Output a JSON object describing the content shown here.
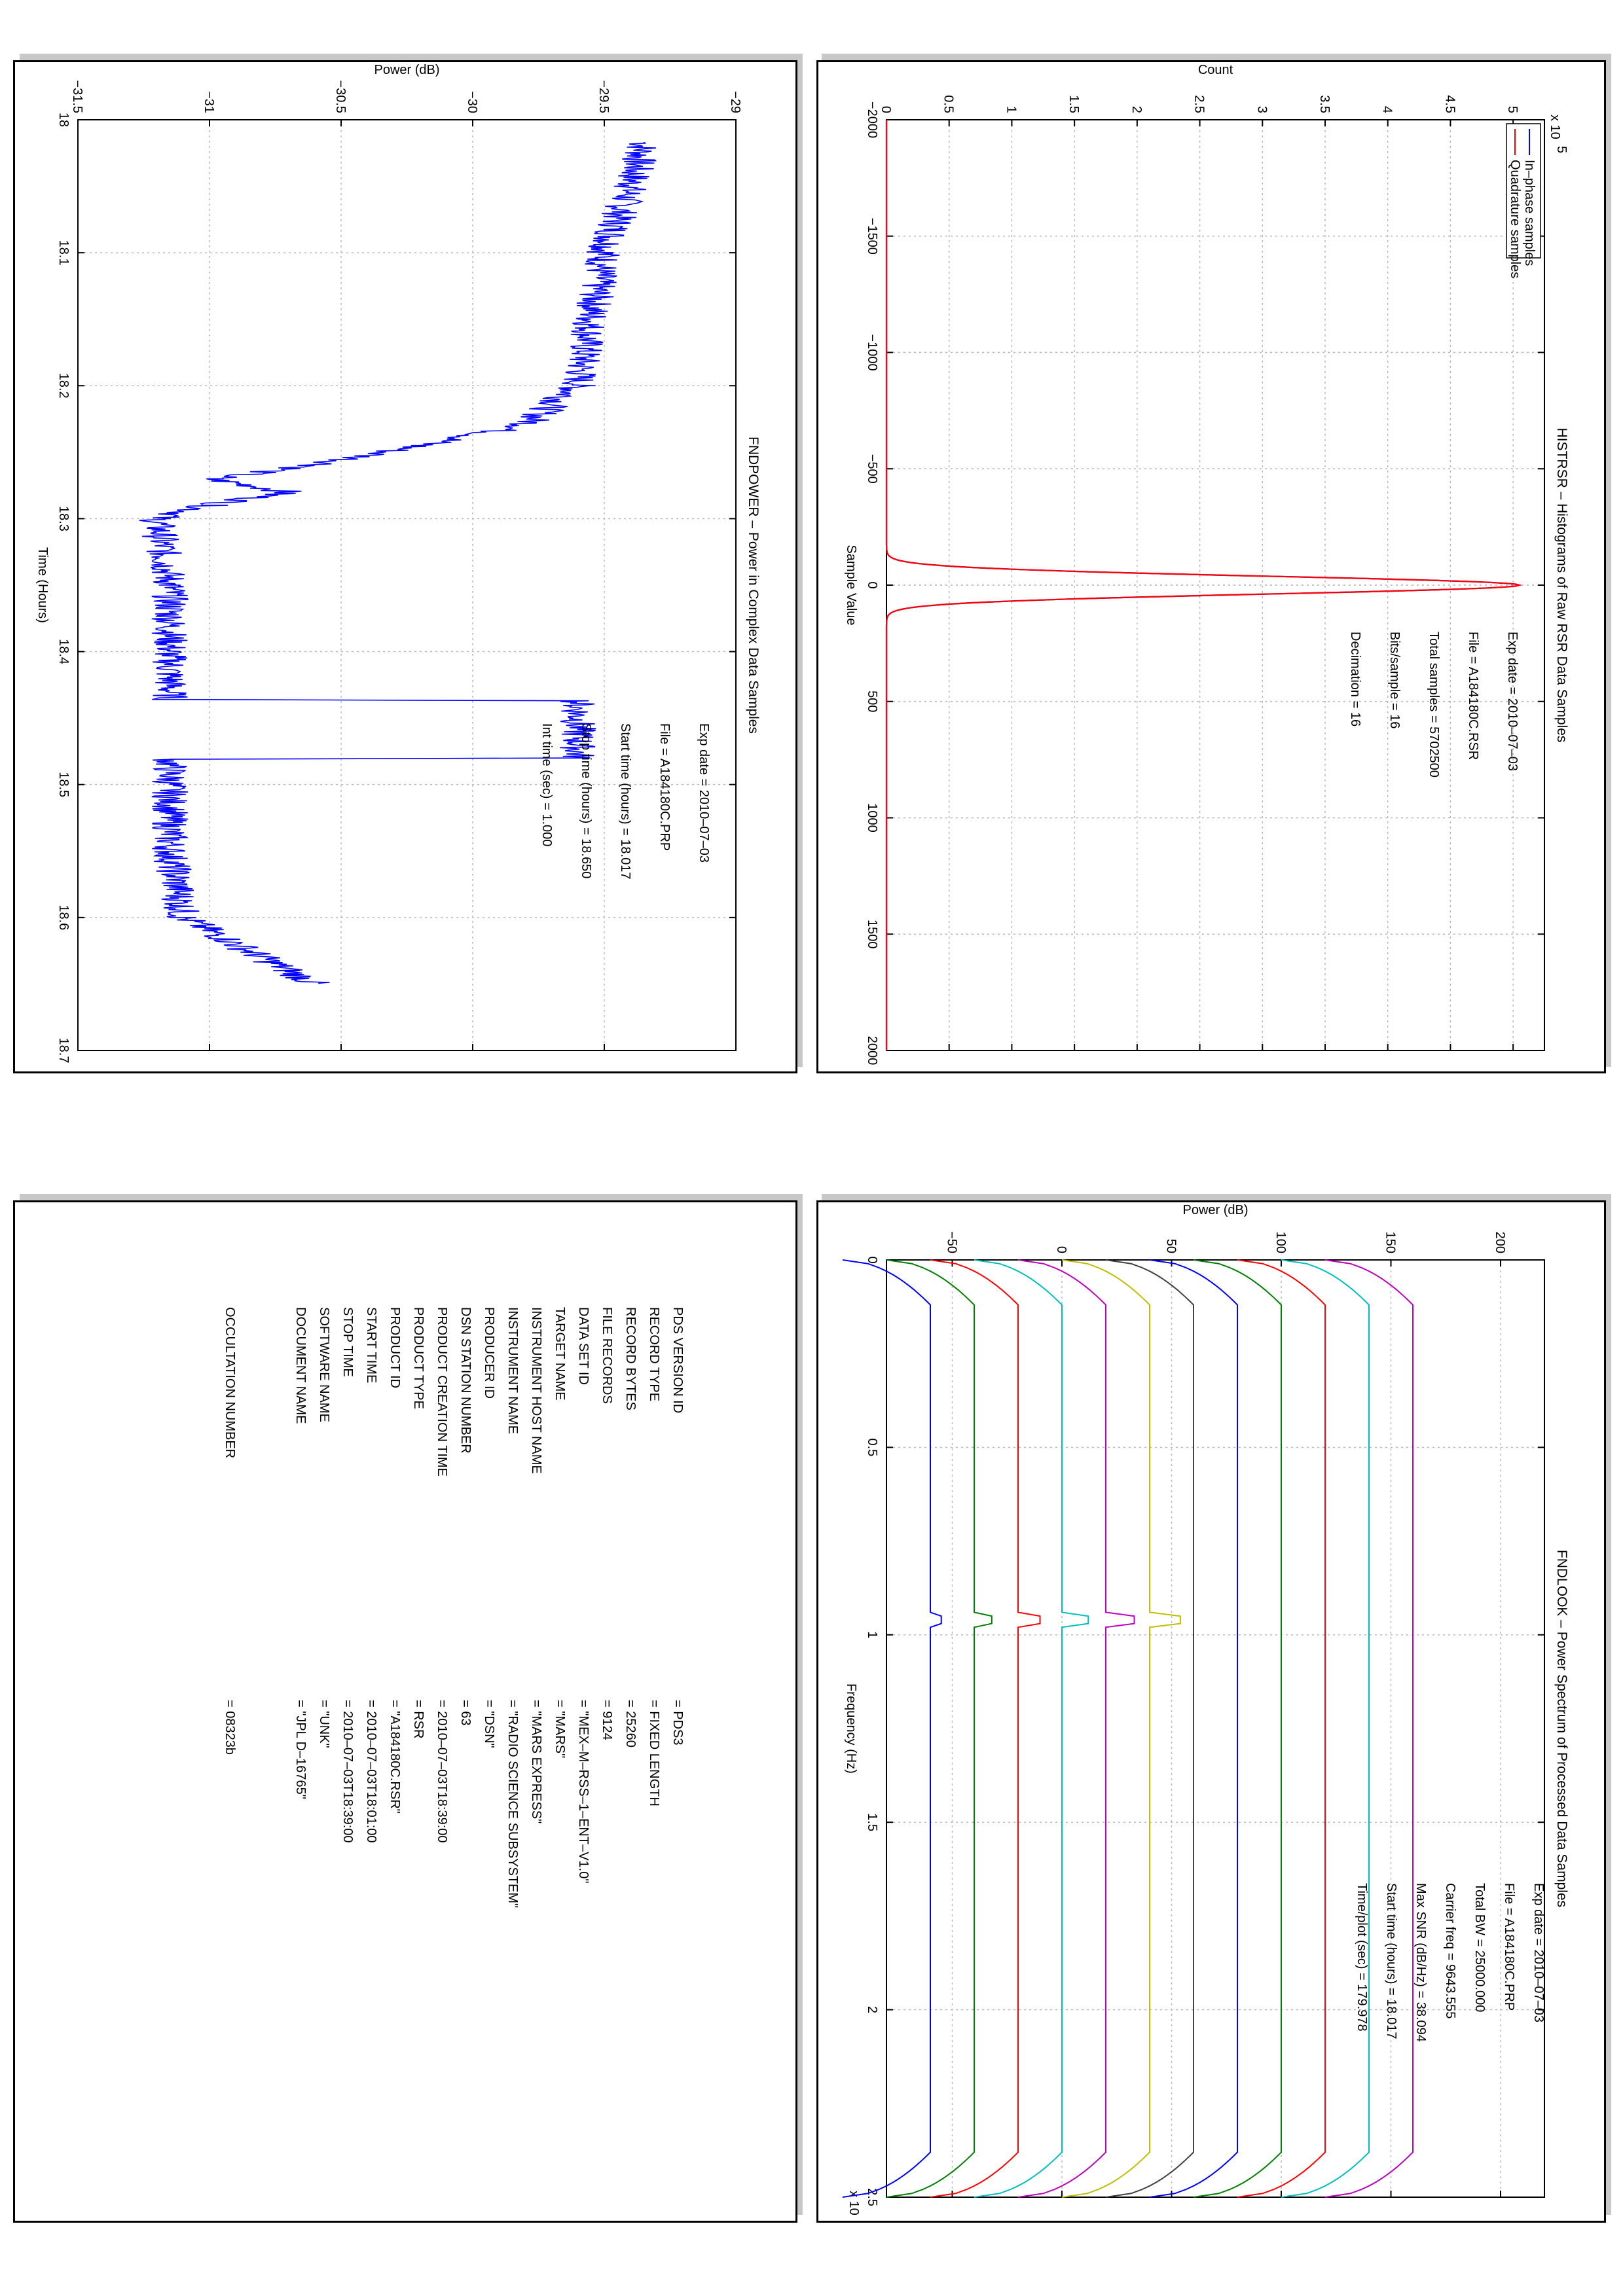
{
  "panels": {
    "histogram": {
      "title": "HISTRSR – Histograms of Raw RSR Data Samples",
      "xlabel": "Sample Value",
      "ylabel": "Count",
      "y_multiplier": "x 10",
      "y_multiplier_exp": "5",
      "legend": [
        "In–phase samples",
        "Quadrature samples"
      ],
      "info": [
        "Exp date = 2010–07–03",
        "File = A184180C.RSR",
        "Total samples =   5702500",
        "Bits/sample   =        16",
        "Decimation    =        16"
      ]
    },
    "power": {
      "title": "FNDPOWER – Power in Complex Data Samples",
      "xlabel": "Time (Hours)",
      "ylabel": "Power (dB)",
      "info": [
        "Exp date = 2010–07–03",
        "File = A184180C.PRP",
        "Start time (hours) = 18.017",
        "Stop time (hours) = 18.650",
        "Int time (sec) =      1.000"
      ]
    },
    "spectrum": {
      "title": "FNDLOOK – Power Spectrum of Processed Data Samples",
      "xlabel": "Frequency (Hz)",
      "ylabel": "Power (dB)",
      "x_multiplier": "x 10",
      "x_multiplier_exp": "4",
      "info": [
        "Exp date = 2010–07–03",
        "File = A184180C.PRP",
        "Total BW =     25000.000",
        "Carrier freq =    9643.555",
        "Max SNR (dB/Hz) =    38.094",
        "Start time (hours) =  18.017",
        "Time/plot (sec) =    179.978"
      ]
    },
    "label": {
      "rows": [
        {
          "key": "PDS VERSION ID",
          "value": "=   PDS3"
        },
        {
          "key": "RECORD TYPE",
          "value": "=   FIXED LENGTH"
        },
        {
          "key": "RECORD BYTES",
          "value": "=   25260"
        },
        {
          "key": "FILE RECORDS",
          "value": "=   9124"
        },
        {
          "key": "DATA SET ID",
          "value": "=   \"MEX–M–RSS–1–ENT–V1.0\""
        },
        {
          "key": "TARGET NAME",
          "value": "=   \"MARS\""
        },
        {
          "key": "INSTRUMENT HOST NAME",
          "value": "=   \"MARS EXPRESS\""
        },
        {
          "key": "INSTRUMENT NAME",
          "value": "=   \"RADIO SCIENCE SUBSYSTEM\""
        },
        {
          "key": "PRODUCER ID",
          "value": "=   \"DSN\""
        },
        {
          "key": "DSN STATION NUMBER",
          "value": "=   63"
        },
        {
          "key": "PRODUCT CREATION TIME",
          "value": "=   2010–07–03T18:39:00"
        },
        {
          "key": "PRODUCT TYPE",
          "value": "=   RSR"
        },
        {
          "key": "PRODUCT ID",
          "value": "=   \"A184180C.RSR\""
        },
        {
          "key": "START TIME",
          "value": "=   2010–07–03T18:01:00"
        },
        {
          "key": "STOP TIME",
          "value": "=   2010–07–03T18:39:00"
        },
        {
          "key": "SOFTWARE NAME",
          "value": "=   \"UNK\""
        },
        {
          "key": "DOCUMENT NAME",
          "value": "=   \"JPL D–16765\""
        },
        {
          "key": "",
          "value": ""
        },
        {
          "key": "",
          "value": ""
        },
        {
          "key": "OCCULTATION NUMBER",
          "value": "=   08323b"
        }
      ]
    }
  },
  "colors": {
    "inphase": "#0000ff",
    "quadrature": "#ff0000",
    "spectrum_series": [
      "#0000ff",
      "#008000",
      "#ff0000",
      "#00bfbf",
      "#bf00bf",
      "#bfbf00",
      "#404040",
      "#0000ff",
      "#008000",
      "#ff0000",
      "#00bfbf",
      "#bf00bf"
    ]
  },
  "chart_data": [
    {
      "type": "line",
      "title": "HISTRSR – Histograms of Raw RSR Data Samples",
      "xlabel": "Sample Value",
      "ylabel": "Count",
      "xlim": [
        -2000,
        2000
      ],
      "ylim": [
        0,
        500000
      ],
      "xticks": [
        -2000,
        -1500,
        -1000,
        -500,
        0,
        500,
        1000,
        1500,
        2000
      ],
      "yticks": [
        0,
        0.5,
        1,
        1.5,
        2,
        2.5,
        3,
        3.5,
        4,
        4.5,
        5
      ],
      "ytick_labels": [
        "0",
        "0.5",
        "1",
        "1.5",
        "2",
        "2.5",
        "3",
        "3.5",
        "4",
        "4.5",
        "5"
      ],
      "grid": true,
      "legend_position": "top-left",
      "series": [
        {
          "name": "In–phase samples",
          "x": [
            -2000,
            -300,
            -150,
            -80,
            -40,
            -20,
            0,
            20,
            40,
            80,
            150,
            300,
            2000
          ],
          "y": [
            0,
            0,
            9000,
            76000,
            240000,
            392000,
            505000,
            392000,
            240000,
            76000,
            9000,
            0,
            0
          ]
        },
        {
          "name": "Quadrature samples",
          "x": [
            -2000,
            -300,
            -150,
            -80,
            -40,
            -20,
            0,
            20,
            40,
            80,
            150,
            300,
            2000
          ],
          "y": [
            0,
            0,
            9000,
            76000,
            240000,
            392000,
            505000,
            392000,
            240000,
            76000,
            9000,
            0,
            0
          ]
        }
      ]
    },
    {
      "type": "line",
      "title": "FNDPOWER – Power in Complex Data Samples",
      "xlabel": "Time (Hours)",
      "ylabel": "Power (dB)",
      "xlim": [
        18,
        18.7
      ],
      "ylim": [
        -31.5,
        -29
      ],
      "xticks": [
        18,
        18.1,
        18.2,
        18.3,
        18.4,
        18.5,
        18.6,
        18.7
      ],
      "yticks": [
        -31.5,
        -31,
        -30.5,
        -30,
        -29.5,
        -29
      ],
      "ytick_labels": [
        "−31.5",
        "−31",
        "−30.5",
        "−30",
        "−29.5",
        "−29"
      ],
      "grid": true,
      "series": [
        {
          "x": [
            18.017,
            18.05,
            18.1,
            18.15,
            18.2,
            18.23,
            18.245,
            18.26,
            18.27,
            18.28,
            18.29,
            18.3,
            18.35,
            18.4,
            18.436,
            18.437,
            18.48,
            18.481,
            18.55,
            18.6,
            18.62,
            18.64,
            18.65
          ],
          "y": [
            -29.35,
            -29.4,
            -29.5,
            -29.55,
            -29.6,
            -29.8,
            -30.2,
            -30.6,
            -31.0,
            -30.7,
            -31.0,
            -31.2,
            -31.15,
            -31.15,
            -31.15,
            -29.6,
            -29.6,
            -31.15,
            -31.15,
            -31.1,
            -30.9,
            -30.7,
            -30.6
          ]
        }
      ]
    },
    {
      "type": "line",
      "title": "FNDLOOK – Power Spectrum of Processed Data Samples",
      "xlabel": "Frequency (Hz)",
      "ylabel": "Power (dB)",
      "xlim": [
        0,
        25000
      ],
      "ylim": [
        -80,
        220
      ],
      "xticks": [
        0,
        5000,
        10000,
        15000,
        20000,
        25000
      ],
      "xtick_labels": [
        "0",
        "0.5",
        "1",
        "1.5",
        "2",
        "2.5"
      ],
      "yticks": [
        -50,
        0,
        50,
        100,
        150,
        200
      ],
      "ytick_labels": [
        "−50",
        "0",
        "50",
        "100",
        "150",
        "200"
      ],
      "grid": true,
      "series": [
        {
          "offset": -60,
          "peak": 5
        },
        {
          "offset": -40,
          "peak": 8
        },
        {
          "offset": -20,
          "peak": 10
        },
        {
          "offset": 0,
          "peak": 12
        },
        {
          "offset": 20,
          "peak": 13
        },
        {
          "offset": 40,
          "peak": 14
        },
        {
          "offset": 60,
          "peak": 0
        },
        {
          "offset": 80,
          "peak": 0
        },
        {
          "offset": 100,
          "peak": 0
        },
        {
          "offset": 120,
          "peak": 0
        },
        {
          "offset": 140,
          "peak": 0
        },
        {
          "offset": 160,
          "peak": 0
        }
      ],
      "carrier_freq": 9643.555
    }
  ]
}
